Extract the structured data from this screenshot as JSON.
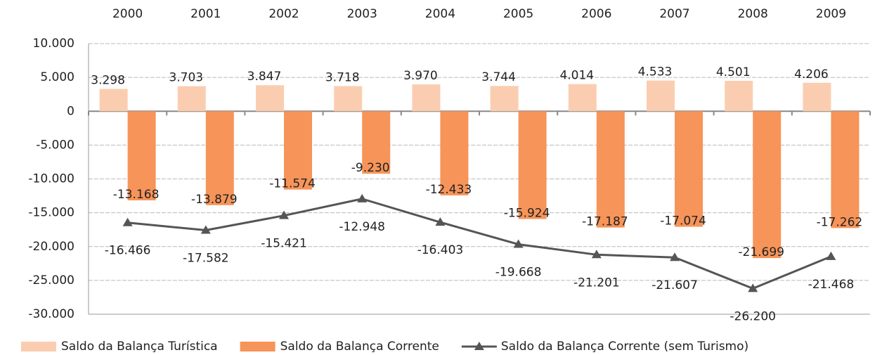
{
  "chart_data": {
    "type": "bar",
    "categories": [
      "2000",
      "2001",
      "2002",
      "2003",
      "2004",
      "2005",
      "2006",
      "2007",
      "2008",
      "2009"
    ],
    "series": [
      {
        "name": "Saldo da Balança Turística",
        "color": "#fbcdb0",
        "values": [
          3298,
          3703,
          3847,
          3718,
          3970,
          3744,
          4014,
          4533,
          4501,
          4206
        ],
        "value_labels": [
          "3.298",
          "3.703",
          "3.847",
          "3.718",
          "3.970",
          "3.744",
          "4.014",
          "4.533",
          "4.501",
          "4.206"
        ]
      },
      {
        "name": "Saldo da Balança Corrente",
        "color": "#f79459",
        "values": [
          -13168,
          -13879,
          -11574,
          -9230,
          -12433,
          -15924,
          -17187,
          -17074,
          -21699,
          -17262
        ],
        "value_labels": [
          "-13.168",
          "-13.879",
          "-11.574",
          "-9.230",
          "-12.433",
          "-15.924",
          "-17.187",
          "-17.074",
          "-21.699",
          "-17.262"
        ]
      },
      {
        "name": "Saldo da Balança Corrente (sem Turismo)",
        "color": "#555555",
        "type": "line",
        "values": [
          -16466,
          -17582,
          -15421,
          -12948,
          -16403,
          -19668,
          -21201,
          -21607,
          -26200,
          -21468
        ],
        "value_labels": [
          "-16.466",
          "-17.582",
          "-15.421",
          "-12.948",
          "-16.403",
          "-19.668",
          "-21.201",
          "-21.607",
          "-26.200",
          "-21.468"
        ]
      }
    ],
    "ylim": [
      -30000,
      10000
    ],
    "yticks": [
      {
        "value": -30000,
        "label": "-30.000"
      },
      {
        "value": -25000,
        "label": "-25.000"
      },
      {
        "value": -20000,
        "label": "-20.000"
      },
      {
        "value": -15000,
        "label": "-15.000"
      },
      {
        "value": -10000,
        "label": "-10.000"
      },
      {
        "value": -5000,
        "label": "-5.000"
      },
      0,
      {
        "value": 5000,
        "label": "5.000"
      },
      {
        "value": 10000,
        "label": "10.000"
      }
    ],
    "grid": true,
    "legend": "bottom"
  }
}
